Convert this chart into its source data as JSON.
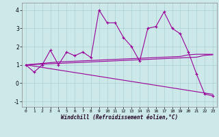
{
  "x": [
    0,
    1,
    2,
    3,
    4,
    5,
    6,
    7,
    8,
    9,
    10,
    11,
    12,
    13,
    14,
    15,
    16,
    17,
    18,
    19,
    20,
    21,
    22,
    23
  ],
  "y_main": [
    1.0,
    0.6,
    1.0,
    1.8,
    1.0,
    1.7,
    1.5,
    1.7,
    1.4,
    4.0,
    3.3,
    3.3,
    2.5,
    2.0,
    1.2,
    3.0,
    3.1,
    3.9,
    3.0,
    2.7,
    1.7,
    0.5,
    -0.6,
    -0.7
  ],
  "y_trend1": [
    1.0,
    1.04,
    1.08,
    1.12,
    1.16,
    1.18,
    1.2,
    1.22,
    1.24,
    1.26,
    1.28,
    1.3,
    1.32,
    1.34,
    1.36,
    1.38,
    1.4,
    1.42,
    1.44,
    1.46,
    1.55,
    1.58,
    1.58,
    1.58
  ],
  "y_trend2": [
    1.0,
    1.02,
    1.04,
    1.06,
    1.08,
    1.1,
    1.12,
    1.14,
    1.16,
    1.18,
    1.2,
    1.22,
    1.24,
    1.26,
    1.28,
    1.3,
    1.32,
    1.34,
    1.36,
    1.38,
    1.4,
    1.42,
    1.52,
    1.55
  ],
  "y_baseline": [
    1.0,
    0.93,
    0.86,
    0.79,
    0.72,
    0.65,
    0.58,
    0.51,
    0.44,
    0.37,
    0.3,
    0.23,
    0.16,
    0.09,
    0.02,
    -0.05,
    -0.12,
    -0.19,
    -0.26,
    -0.33,
    -0.4,
    -0.47,
    -0.54,
    -0.61
  ],
  "color": "#990099",
  "bg_color": "#cce8e8",
  "grid_color": "#aad0d0",
  "xlabel": "Windchill (Refroidissement éolien,°C)",
  "xlim": [
    -0.5,
    23.5
  ],
  "ylim": [
    -1.3,
    4.4
  ],
  "yticks": [
    -1,
    0,
    1,
    2,
    3,
    4
  ],
  "xticks": [
    0,
    1,
    2,
    3,
    4,
    5,
    6,
    7,
    8,
    9,
    10,
    11,
    12,
    13,
    14,
    15,
    16,
    17,
    18,
    19,
    20,
    21,
    22,
    23
  ]
}
